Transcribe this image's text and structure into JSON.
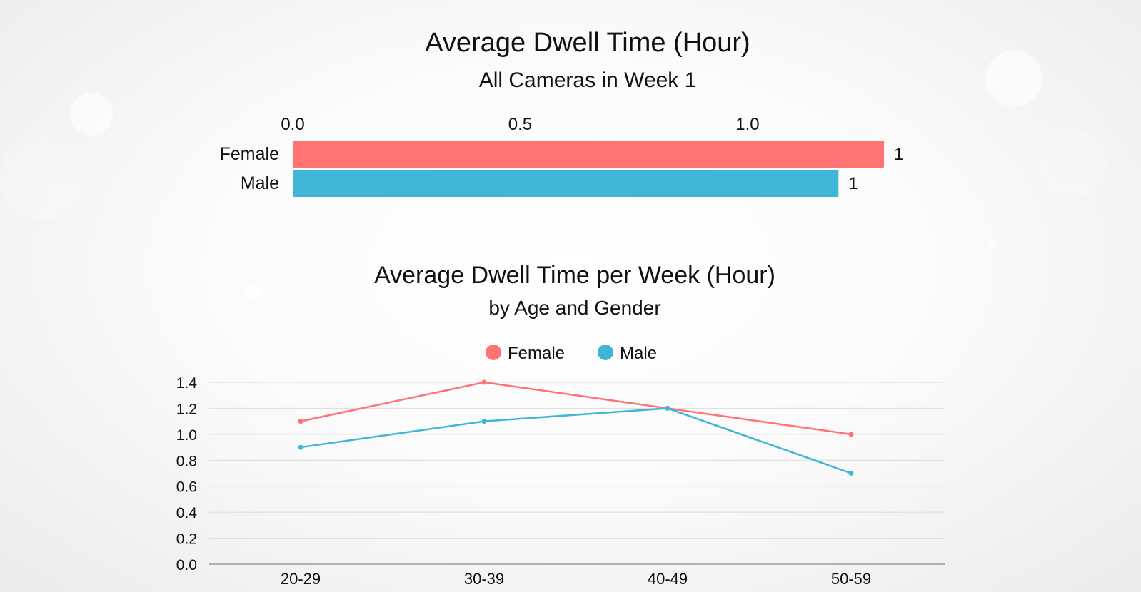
{
  "chart_data": [
    {
      "type": "bar",
      "orientation": "horizontal",
      "title": "Average Dwell Time (Hour)",
      "subtitle": "All Cameras in Week 1",
      "categories": [
        "Female",
        "Male"
      ],
      "values": [
        1.3,
        1.2
      ],
      "data_labels": [
        "1",
        "1"
      ],
      "colors": [
        "#ff7373",
        "#40b6d6"
      ],
      "xlim": [
        0,
        1.3
      ],
      "x_ticks": [
        0.0,
        0.5,
        1.0
      ],
      "x_tick_labels": [
        "0.0",
        "0.5",
        "1.0"
      ],
      "axis_position": "top",
      "grid": false
    },
    {
      "type": "line",
      "title": "Average Dwell Time per Week (Hour)",
      "subtitle": "by Age and Gender",
      "categories": [
        "20-29",
        "30-39",
        "40-49",
        "50-59"
      ],
      "series": [
        {
          "name": "Female",
          "color": "#ff7373",
          "values": [
            1.1,
            1.4,
            1.2,
            1.0
          ]
        },
        {
          "name": "Male",
          "color": "#40b6d6",
          "values": [
            0.9,
            1.1,
            1.2,
            0.7
          ]
        }
      ],
      "ylim": [
        0,
        1.4
      ],
      "y_ticks": [
        0.0,
        0.2,
        0.4,
        0.6,
        0.8,
        1.0,
        1.2,
        1.4
      ],
      "y_tick_labels": [
        "0.0",
        "0.2",
        "0.4",
        "0.6",
        "0.8",
        "1.0",
        "1.2",
        "1.4"
      ],
      "legend": "top-center",
      "grid": true
    }
  ]
}
